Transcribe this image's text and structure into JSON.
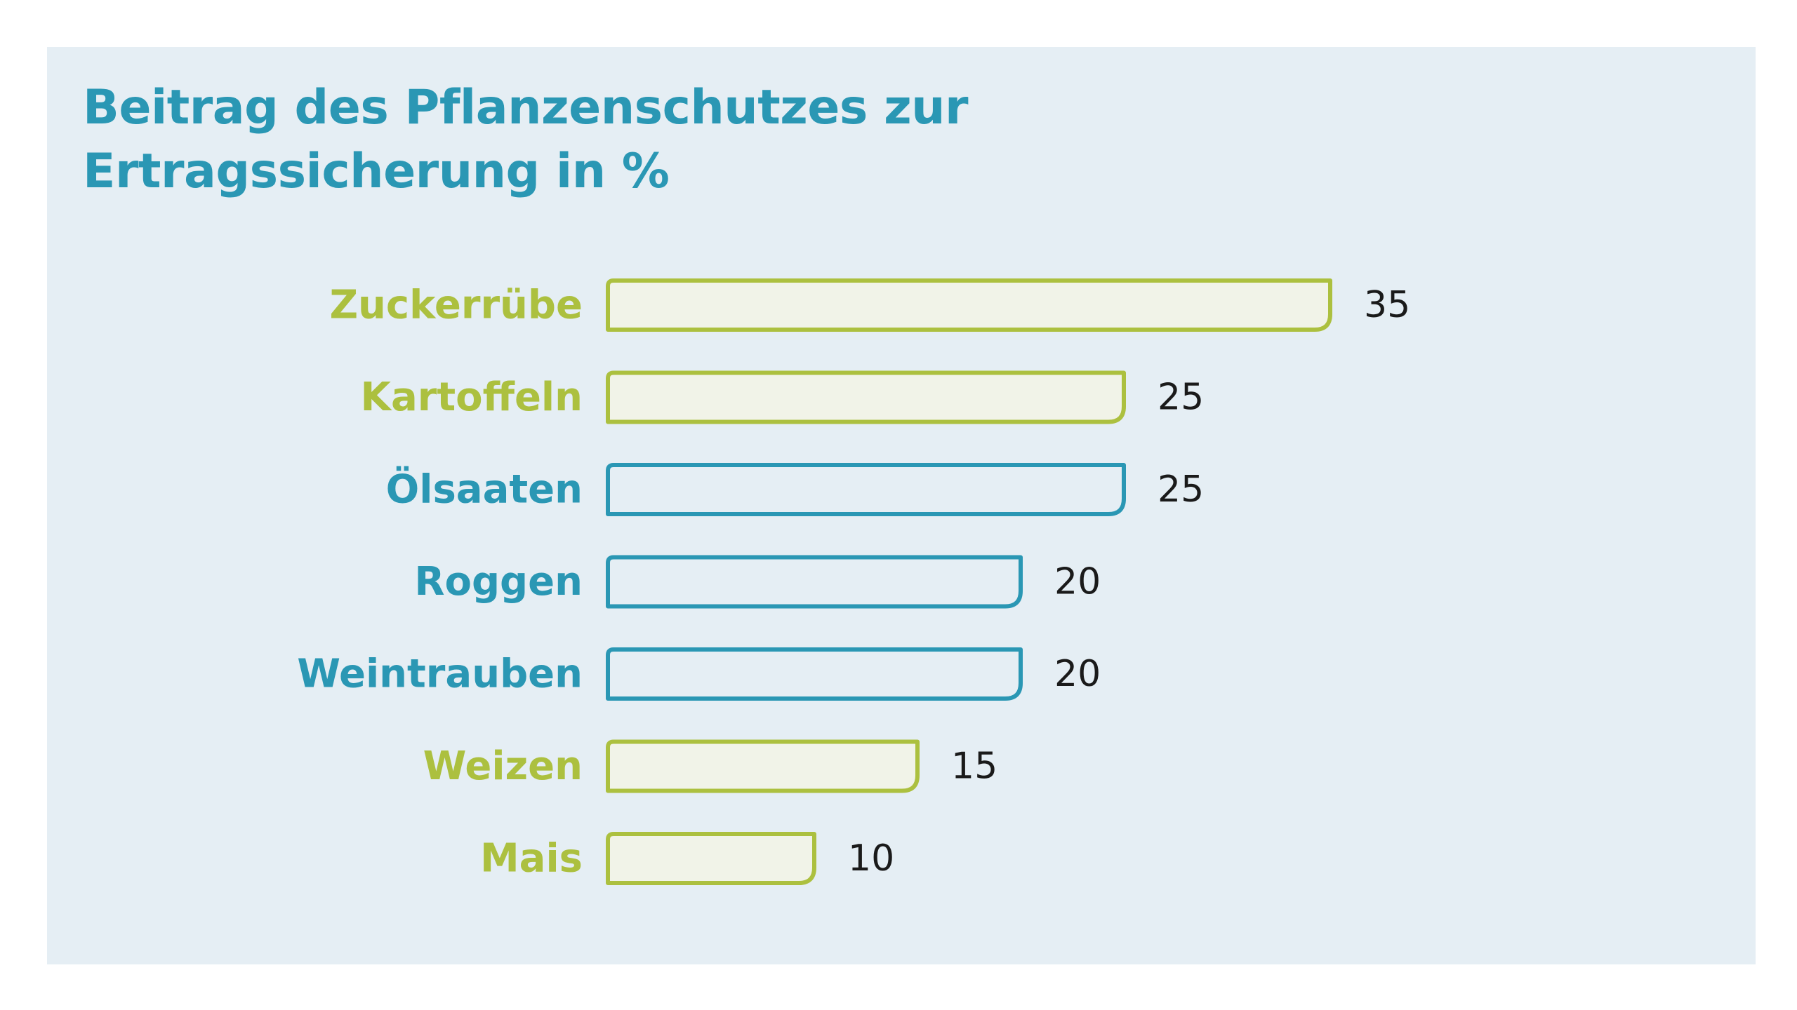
{
  "chart_data": {
    "type": "bar",
    "orientation": "horizontal",
    "title_lines": [
      "Beitrag des Pflanzenschutzes zur",
      "Ertragssicherung in %"
    ],
    "categories": [
      "Zuckerrübe",
      "Kartoffeln",
      "Ölsaaten",
      "Roggen",
      "Weintrauben",
      "Weizen",
      "Mais"
    ],
    "values": [
      35,
      25,
      25,
      20,
      20,
      15,
      10
    ],
    "value_labels": [
      "35",
      "25",
      "25",
      "20",
      "20",
      "15",
      "10"
    ],
    "bar_styles": [
      "green",
      "green",
      "blue",
      "blue",
      "blue",
      "green",
      "green"
    ],
    "xlim": [
      0,
      35
    ],
    "grid": false,
    "legend": "none"
  },
  "colors": {
    "background": "#e5eef4",
    "title": "#2a97b4",
    "green_stroke": "#acc03f",
    "green_fill": "#f1f3e8",
    "blue_stroke": "#2a97b4",
    "blue_fill": "#e5eef4",
    "value_text": "#1a1a1a"
  }
}
